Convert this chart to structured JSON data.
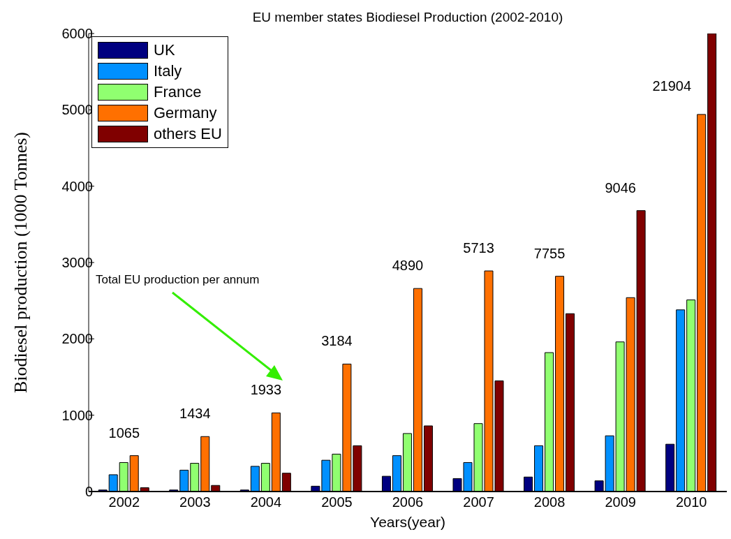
{
  "chart_data": {
    "type": "bar",
    "title": "EU member states Biodiesel Production (2002-2010)",
    "xlabel": "Years(year)",
    "ylabel": "Biodiesel production (1000 Tonnes)",
    "categories": [
      "2002",
      "2003",
      "2004",
      "2005",
      "2006",
      "2007",
      "2008",
      "2009",
      "2010"
    ],
    "series": [
      {
        "name": "UK",
        "color": "#000080",
        "values": [
          20,
          20,
          20,
          70,
          200,
          170,
          190,
          140,
          620
        ]
      },
      {
        "name": "Italy",
        "color": "#0090ff",
        "values": [
          220,
          280,
          330,
          410,
          470,
          380,
          600,
          730,
          2380
        ]
      },
      {
        "name": "France",
        "color": "#90ff70",
        "values": [
          380,
          370,
          370,
          490,
          760,
          890,
          1820,
          1960,
          2510
        ]
      },
      {
        "name": "Germany",
        "color": "#ff7000",
        "values": [
          470,
          720,
          1030,
          1670,
          2660,
          2890,
          2820,
          2540,
          4940
        ]
      },
      {
        "name": "others EU",
        "color": "#800000",
        "values": [
          50,
          80,
          240,
          600,
          860,
          1450,
          2330,
          3680,
          6000
        ]
      }
    ],
    "annotations": [
      "Total EU production per annum",
      "1065",
      "1434",
      "1933",
      "3184",
      "4890",
      "5713",
      "7755",
      "9046",
      "21904"
    ],
    "ylim": [
      0,
      6000
    ],
    "yticks": [
      0,
      1000,
      2000,
      3000,
      4000,
      5000,
      6000
    ],
    "legend": "top left"
  }
}
